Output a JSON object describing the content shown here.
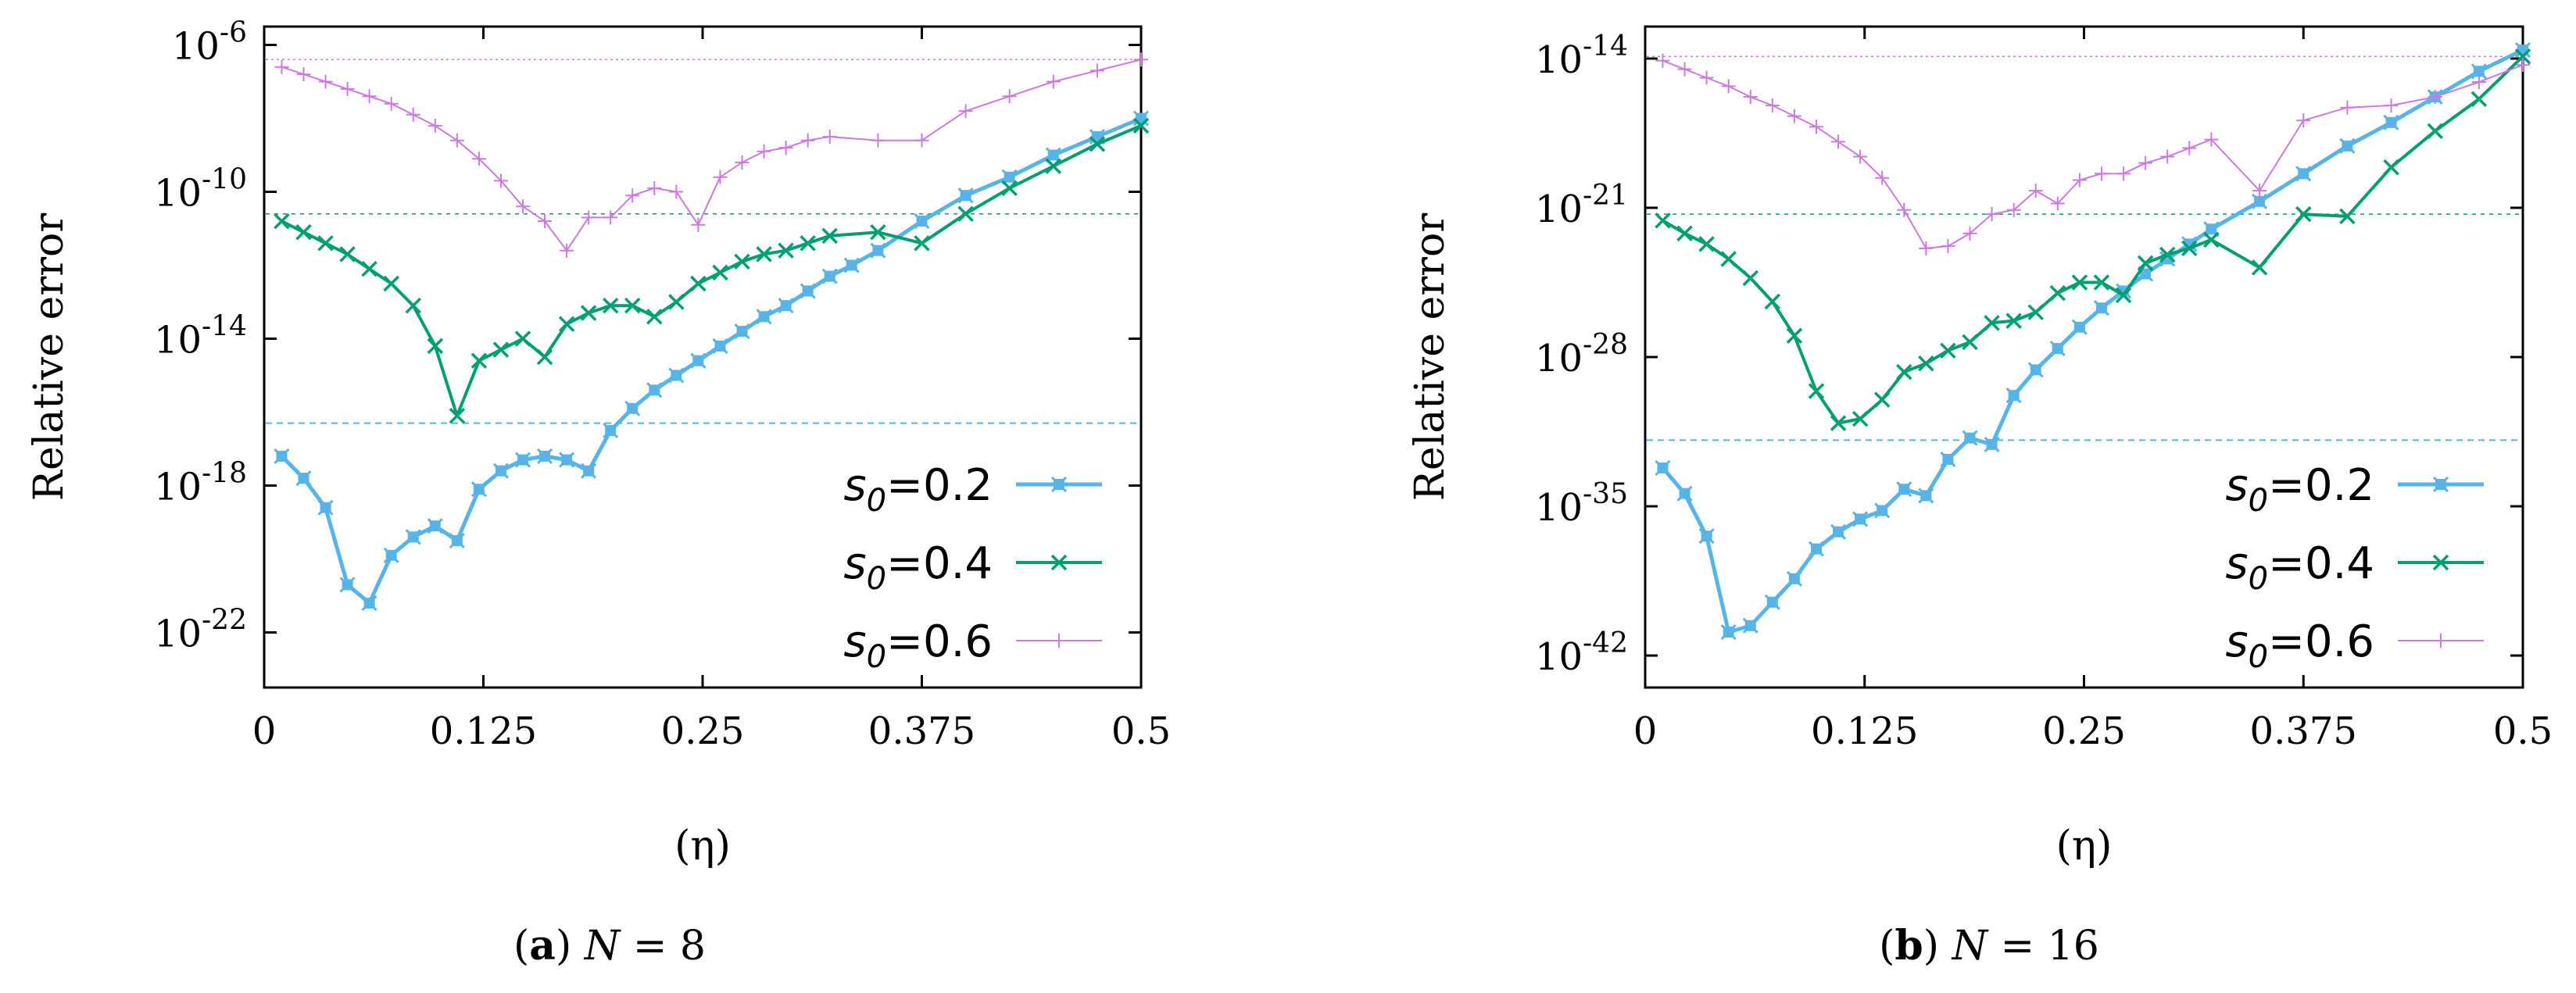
{
  "chart_data": [
    {
      "type": "line",
      "panel": "a",
      "caption": {
        "label": "a",
        "variable": "N",
        "value": "8"
      },
      "xlabel": "(η)",
      "ylabel": "Relative   error",
      "xscale": "linear",
      "yscale": "log",
      "xlim": [
        0,
        0.5
      ],
      "ylim_log10": [
        -23.5,
        -5.5
      ],
      "xticks": [
        0,
        0.125,
        0.25,
        0.375,
        0.5
      ],
      "xtick_labels": [
        "0",
        "0.125",
        "0.25",
        "0.375",
        "0.5"
      ],
      "ytick_exponents": [
        -22,
        -18,
        -14,
        -10,
        -6
      ],
      "ytick_labels": [
        {
          "base": "10",
          "exp": "-22"
        },
        {
          "base": "10",
          "exp": "-18"
        },
        {
          "base": "10",
          "exp": "-14"
        },
        {
          "base": "10",
          "exp": "-10"
        },
        {
          "base": "10",
          "exp": "-6"
        }
      ],
      "legend_position": "bottom-right",
      "reference_lines_log10": [
        -16.3,
        -10.6,
        -6.4
      ],
      "series": [
        {
          "name": "s0=0.2",
          "legend": {
            "symbol": "s",
            "sub": "0",
            "value": "=0.2"
          },
          "color": "#56B4E9",
          "marker": "star",
          "line_width": 5,
          "x": [
            0.01,
            0.0225,
            0.035,
            0.0475,
            0.06,
            0.0725,
            0.085,
            0.0975,
            0.11,
            0.1225,
            0.135,
            0.1475,
            0.16,
            0.1725,
            0.185,
            0.1975,
            0.21,
            0.2225,
            0.235,
            0.2475,
            0.26,
            0.2725,
            0.285,
            0.2975,
            0.31,
            0.3225,
            0.335,
            0.35,
            0.375,
            0.4,
            0.425,
            0.45,
            0.475,
            0.5
          ],
          "log10_y": [
            -17.2,
            -17.8,
            -18.6,
            -20.7,
            -21.2,
            -19.9,
            -19.4,
            -19.1,
            -19.5,
            -18.1,
            -17.6,
            -17.3,
            -17.2,
            -17.3,
            -17.6,
            -16.5,
            -15.9,
            -15.4,
            -15.0,
            -14.6,
            -14.2,
            -13.8,
            -13.4,
            -13.1,
            -12.7,
            -12.3,
            -12.0,
            -11.6,
            -10.8,
            -10.1,
            -9.6,
            -9.0,
            -8.5,
            -8.0
          ]
        },
        {
          "name": "s0=0.4",
          "legend": {
            "symbol": "s",
            "sub": "0",
            "value": "=0.4"
          },
          "color": "#009E73",
          "marker": "x",
          "line_width": 4,
          "x": [
            0.01,
            0.0225,
            0.035,
            0.0475,
            0.06,
            0.0725,
            0.085,
            0.0975,
            0.11,
            0.1225,
            0.135,
            0.1475,
            0.16,
            0.1725,
            0.185,
            0.1975,
            0.21,
            0.2225,
            0.235,
            0.2475,
            0.26,
            0.2725,
            0.285,
            0.2975,
            0.31,
            0.3225,
            0.35,
            0.375,
            0.4,
            0.425,
            0.45,
            0.475,
            0.5
          ],
          "log10_y": [
            -10.8,
            -11.1,
            -11.4,
            -11.7,
            -12.1,
            -12.5,
            -13.1,
            -14.2,
            -16.1,
            -14.6,
            -14.3,
            -14.0,
            -14.5,
            -13.6,
            -13.3,
            -13.1,
            -13.1,
            -13.4,
            -13.0,
            -12.5,
            -12.2,
            -11.9,
            -11.7,
            -11.6,
            -11.4,
            -11.2,
            -11.1,
            -11.4,
            -10.6,
            -9.9,
            -9.3,
            -8.7,
            -8.2
          ]
        },
        {
          "name": "s0=0.6",
          "legend": {
            "symbol": "s",
            "sub": "0",
            "value": "=0.6"
          },
          "color": "#CC79E0",
          "marker": "plus",
          "line_width": 2,
          "x": [
            0.01,
            0.0225,
            0.035,
            0.0475,
            0.06,
            0.0725,
            0.085,
            0.0975,
            0.11,
            0.1225,
            0.135,
            0.1475,
            0.16,
            0.1725,
            0.185,
            0.1975,
            0.21,
            0.2225,
            0.235,
            0.2475,
            0.26,
            0.2725,
            0.285,
            0.2975,
            0.31,
            0.3225,
            0.35,
            0.375,
            0.4,
            0.425,
            0.45,
            0.475,
            0.5
          ],
          "log10_y": [
            -6.6,
            -6.8,
            -7.0,
            -7.2,
            -7.4,
            -7.6,
            -7.9,
            -8.2,
            -8.6,
            -9.1,
            -9.7,
            -10.4,
            -10.8,
            -11.6,
            -10.7,
            -10.7,
            -10.1,
            -9.9,
            -10.0,
            -10.9,
            -9.6,
            -9.2,
            -8.9,
            -8.8,
            -8.6,
            -8.5,
            -8.6,
            -8.6,
            -7.8,
            -7.4,
            -7.0,
            -6.7,
            -6.4
          ]
        }
      ]
    },
    {
      "type": "line",
      "panel": "b",
      "caption": {
        "label": "b",
        "variable": "N",
        "value": "16"
      },
      "xlabel": "(η)",
      "ylabel": "Relative   error",
      "xscale": "linear",
      "yscale": "log",
      "xlim": [
        0,
        0.5
      ],
      "ylim_log10": [
        -43.5,
        -12.5
      ],
      "xticks": [
        0,
        0.125,
        0.25,
        0.375,
        0.5
      ],
      "xtick_labels": [
        "0",
        "0.125",
        "0.25",
        "0.375",
        "0.5"
      ],
      "ytick_exponents": [
        -42,
        -35,
        -28,
        -21,
        -14
      ],
      "ytick_labels": [
        {
          "base": "10",
          "exp": "-42"
        },
        {
          "base": "10",
          "exp": "-35"
        },
        {
          "base": "10",
          "exp": "-28"
        },
        {
          "base": "10",
          "exp": "-21"
        },
        {
          "base": "10",
          "exp": "-14"
        }
      ],
      "legend_position": "bottom-right",
      "reference_lines_log10": [
        -31.9,
        -21.3,
        -13.9
      ],
      "series": [
        {
          "name": "s0=0.2",
          "legend": {
            "symbol": "s",
            "sub": "0",
            "value": "=0.2"
          },
          "color": "#56B4E9",
          "marker": "star",
          "line_width": 5,
          "x": [
            0.01,
            0.0225,
            0.035,
            0.0475,
            0.06,
            0.0725,
            0.085,
            0.0975,
            0.11,
            0.1225,
            0.135,
            0.1475,
            0.16,
            0.1725,
            0.185,
            0.1975,
            0.21,
            0.2225,
            0.235,
            0.2475,
            0.26,
            0.2725,
            0.285,
            0.2975,
            0.31,
            0.3225,
            0.35,
            0.375,
            0.4,
            0.425,
            0.45,
            0.475,
            0.5
          ],
          "log10_y": [
            -33.2,
            -34.4,
            -36.4,
            -40.9,
            -40.6,
            -39.5,
            -38.4,
            -37.0,
            -36.2,
            -35.6,
            -35.2,
            -34.2,
            -34.5,
            -32.8,
            -31.8,
            -32.1,
            -29.8,
            -28.6,
            -27.6,
            -26.6,
            -25.7,
            -24.9,
            -24.1,
            -23.4,
            -22.7,
            -22.0,
            -20.7,
            -19.4,
            -18.1,
            -17.0,
            -15.8,
            -14.6,
            -13.6
          ]
        },
        {
          "name": "s0=0.4",
          "legend": {
            "symbol": "s",
            "sub": "0",
            "value": "=0.4"
          },
          "color": "#009E73",
          "marker": "x",
          "line_width": 4,
          "x": [
            0.01,
            0.0225,
            0.035,
            0.0475,
            0.06,
            0.0725,
            0.085,
            0.0975,
            0.11,
            0.1225,
            0.135,
            0.1475,
            0.16,
            0.1725,
            0.185,
            0.1975,
            0.21,
            0.2225,
            0.235,
            0.2475,
            0.26,
            0.2725,
            0.285,
            0.2975,
            0.31,
            0.3225,
            0.35,
            0.375,
            0.4,
            0.425,
            0.45,
            0.475,
            0.5
          ],
          "log10_y": [
            -21.6,
            -22.2,
            -22.7,
            -23.4,
            -24.3,
            -25.4,
            -27.0,
            -29.6,
            -31.1,
            -30.9,
            -30.0,
            -28.7,
            -28.3,
            -27.7,
            -27.3,
            -26.4,
            -26.3,
            -25.9,
            -25.0,
            -24.5,
            -24.5,
            -25.1,
            -23.6,
            -23.2,
            -22.9,
            -22.5,
            -23.8,
            -21.3,
            -21.4,
            -19.1,
            -17.4,
            -15.9,
            -13.9
          ]
        },
        {
          "name": "s0=0.6",
          "legend": {
            "symbol": "s",
            "sub": "0",
            "value": "=0.6"
          },
          "color": "#CC79E0",
          "marker": "plus",
          "line_width": 2,
          "x": [
            0.01,
            0.0225,
            0.035,
            0.0475,
            0.06,
            0.0725,
            0.085,
            0.0975,
            0.11,
            0.1225,
            0.135,
            0.1475,
            0.16,
            0.1725,
            0.185,
            0.1975,
            0.21,
            0.2225,
            0.235,
            0.2475,
            0.26,
            0.2725,
            0.285,
            0.2975,
            0.31,
            0.3225,
            0.35,
            0.375,
            0.4,
            0.425,
            0.45,
            0.475,
            0.5
          ],
          "log10_y": [
            -14.1,
            -14.5,
            -14.9,
            -15.3,
            -15.8,
            -16.2,
            -16.7,
            -17.2,
            -17.9,
            -18.6,
            -19.6,
            -21.1,
            -22.9,
            -22.8,
            -22.2,
            -21.3,
            -21.1,
            -20.2,
            -20.8,
            -19.7,
            -19.4,
            -19.4,
            -18.9,
            -18.6,
            -18.2,
            -17.8,
            -20.2,
            -16.9,
            -16.3,
            -16.2,
            -15.8,
            -15.1,
            -14.3
          ]
        }
      ]
    }
  ]
}
